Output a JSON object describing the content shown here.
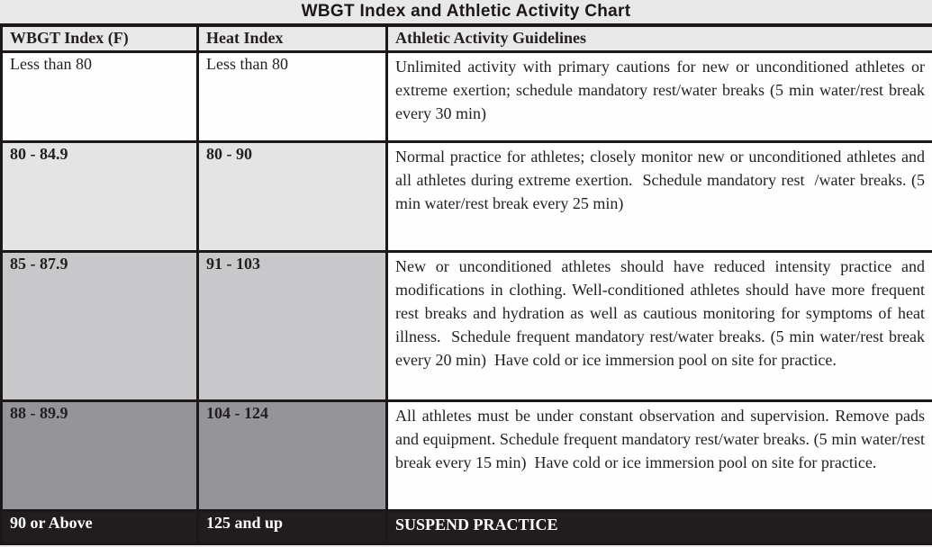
{
  "title": "WBGT Index and Athletic Activity Chart",
  "colors": {
    "page_bg": "#e9e8e8",
    "header_bg": "#e9e8e8",
    "border": "#1c1819",
    "title_color": "#1c1819",
    "body_text": "#231f20"
  },
  "table": {
    "columns": [
      "WBGT Index (F)",
      "Heat Index",
      "Athletic Activity Guidelines"
    ],
    "rows": [
      {
        "wbgt": "Less than 80",
        "heat": "Less than 80",
        "guidelines": "Unlimited activity with primary cautions for new or unconditioned athletes or extreme exertion; schedule mandatory rest/water breaks (5 min water/rest break every 30 min)",
        "key_shade": "#fefefe",
        "guide_shade": "#fefefe",
        "text_color": "#231f20"
      },
      {
        "wbgt": "80 - 84.9",
        "heat": "80 - 90",
        "guidelines": "Normal practice for athletes; closely monitor new or unconditioned athletes and all athletes during extreme exertion.  Schedule mandatory rest  /water breaks. (5 min water/rest break every 25 min)",
        "key_shade": "#e4e4e4",
        "guide_shade": "#fefefe",
        "text_color": "#231f20"
      },
      {
        "wbgt": "85 - 87.9",
        "heat": "91 - 103",
        "guidelines": "New or unconditioned athletes should have reduced intensity practice and modifications in clothing. Well-conditioned athletes should have more frequent rest breaks and hydration as well as cautious monitoring for symptoms of heat illness.  Schedule frequent mandatory rest/water breaks. (5 min water/rest break every 20 min)  Have cold or ice immersion pool on site for practice.",
        "key_shade": "#c8c8ca",
        "guide_shade": "#fefefe",
        "text_color": "#231f20"
      },
      {
        "wbgt": "88 - 89.9",
        "heat": "104 - 124",
        "guidelines": "All athletes must be under constant observation and supervision. Remove pads and equipment. Schedule frequent mandatory rest/water breaks. (5 min water/rest break every 15 min)  Have cold or ice immersion pool on site for practice.",
        "key_shade": "#949499",
        "guide_shade": "#fefefe",
        "text_color": "#231f20"
      },
      {
        "wbgt": "90 or Above",
        "heat": "125 and up",
        "guidelines": "SUSPEND PRACTICE",
        "key_shade": "#211d1e",
        "guide_shade": "#211d1e",
        "text_color": "#ffffff"
      }
    ]
  }
}
